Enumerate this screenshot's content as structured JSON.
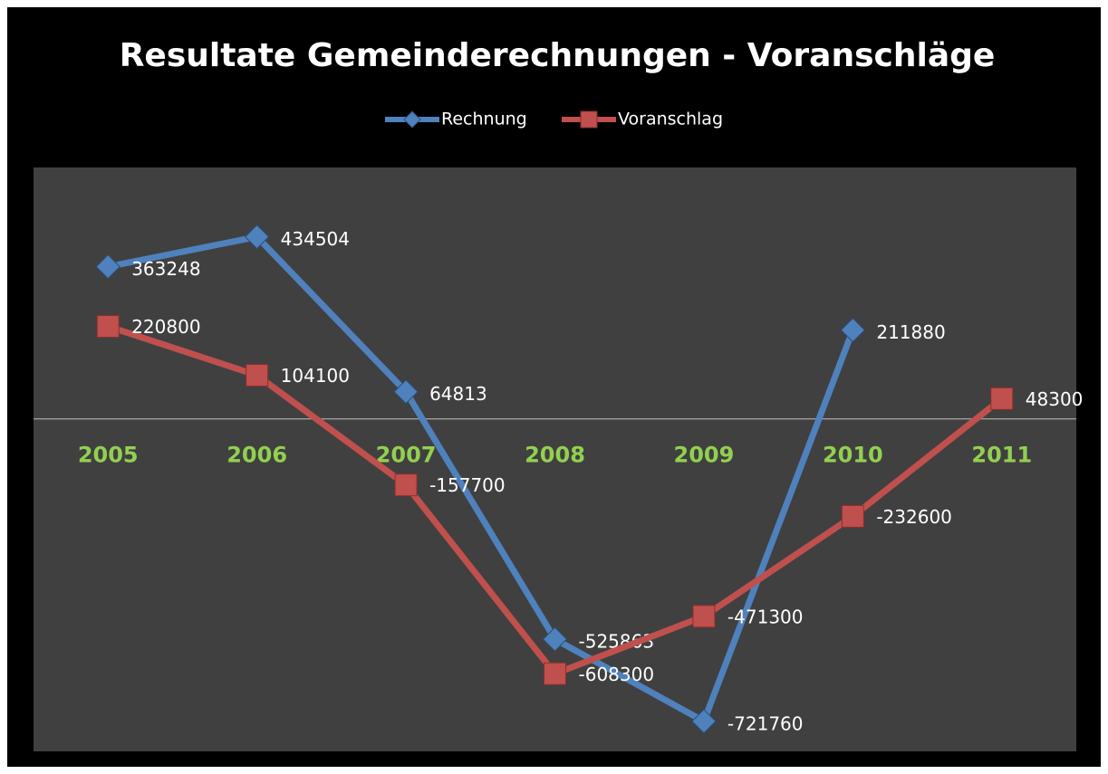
{
  "chart_data": {
    "type": "line",
    "title": "Resultate Gemeinderechnungen - Voranschläge",
    "categories": [
      "2005",
      "2006",
      "2007",
      "2008",
      "2009",
      "2010",
      "2011"
    ],
    "series": [
      {
        "name": "Rechnung",
        "color": "#4f81bd",
        "values": [
          363248,
          434504,
          64813,
          -525863,
          -721760,
          211880,
          null
        ]
      },
      {
        "name": "Voranschlag",
        "color": "#c0504d",
        "values": [
          220800,
          104100,
          -157700,
          -608300,
          -471300,
          -232600,
          48300
        ]
      }
    ],
    "ylim": [
      -800000,
      600000
    ],
    "legend": "top"
  }
}
